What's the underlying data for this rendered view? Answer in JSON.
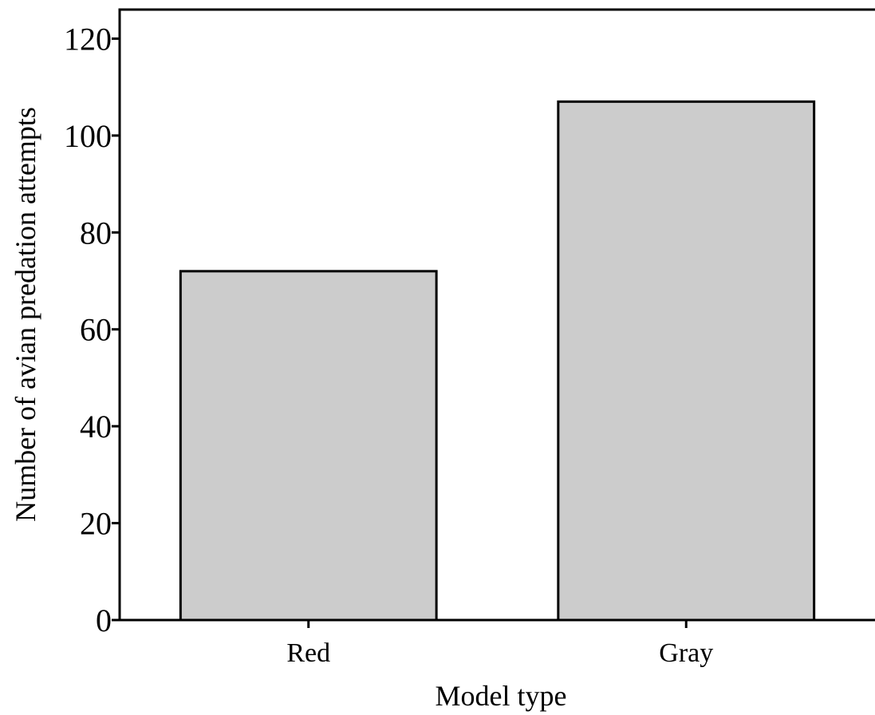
{
  "chart_data": {
    "type": "bar",
    "title": "",
    "xlabel": "Model type",
    "ylabel": "Number of avian predation attempts",
    "categories": [
      "Red",
      "Gray"
    ],
    "values": [
      72,
      107
    ],
    "ylim": [
      0,
      126
    ],
    "yticks": [
      0,
      20,
      40,
      60,
      80,
      100,
      120
    ],
    "ytick_labels": [
      "0",
      "20",
      "40",
      "60",
      "80",
      "100",
      "120"
    ],
    "grid": false,
    "legend": "none",
    "colors": {
      "bar_fill": "#cccccc",
      "bar_stroke": "#000000",
      "axis": "#000000",
      "background": "#ffffff"
    }
  }
}
